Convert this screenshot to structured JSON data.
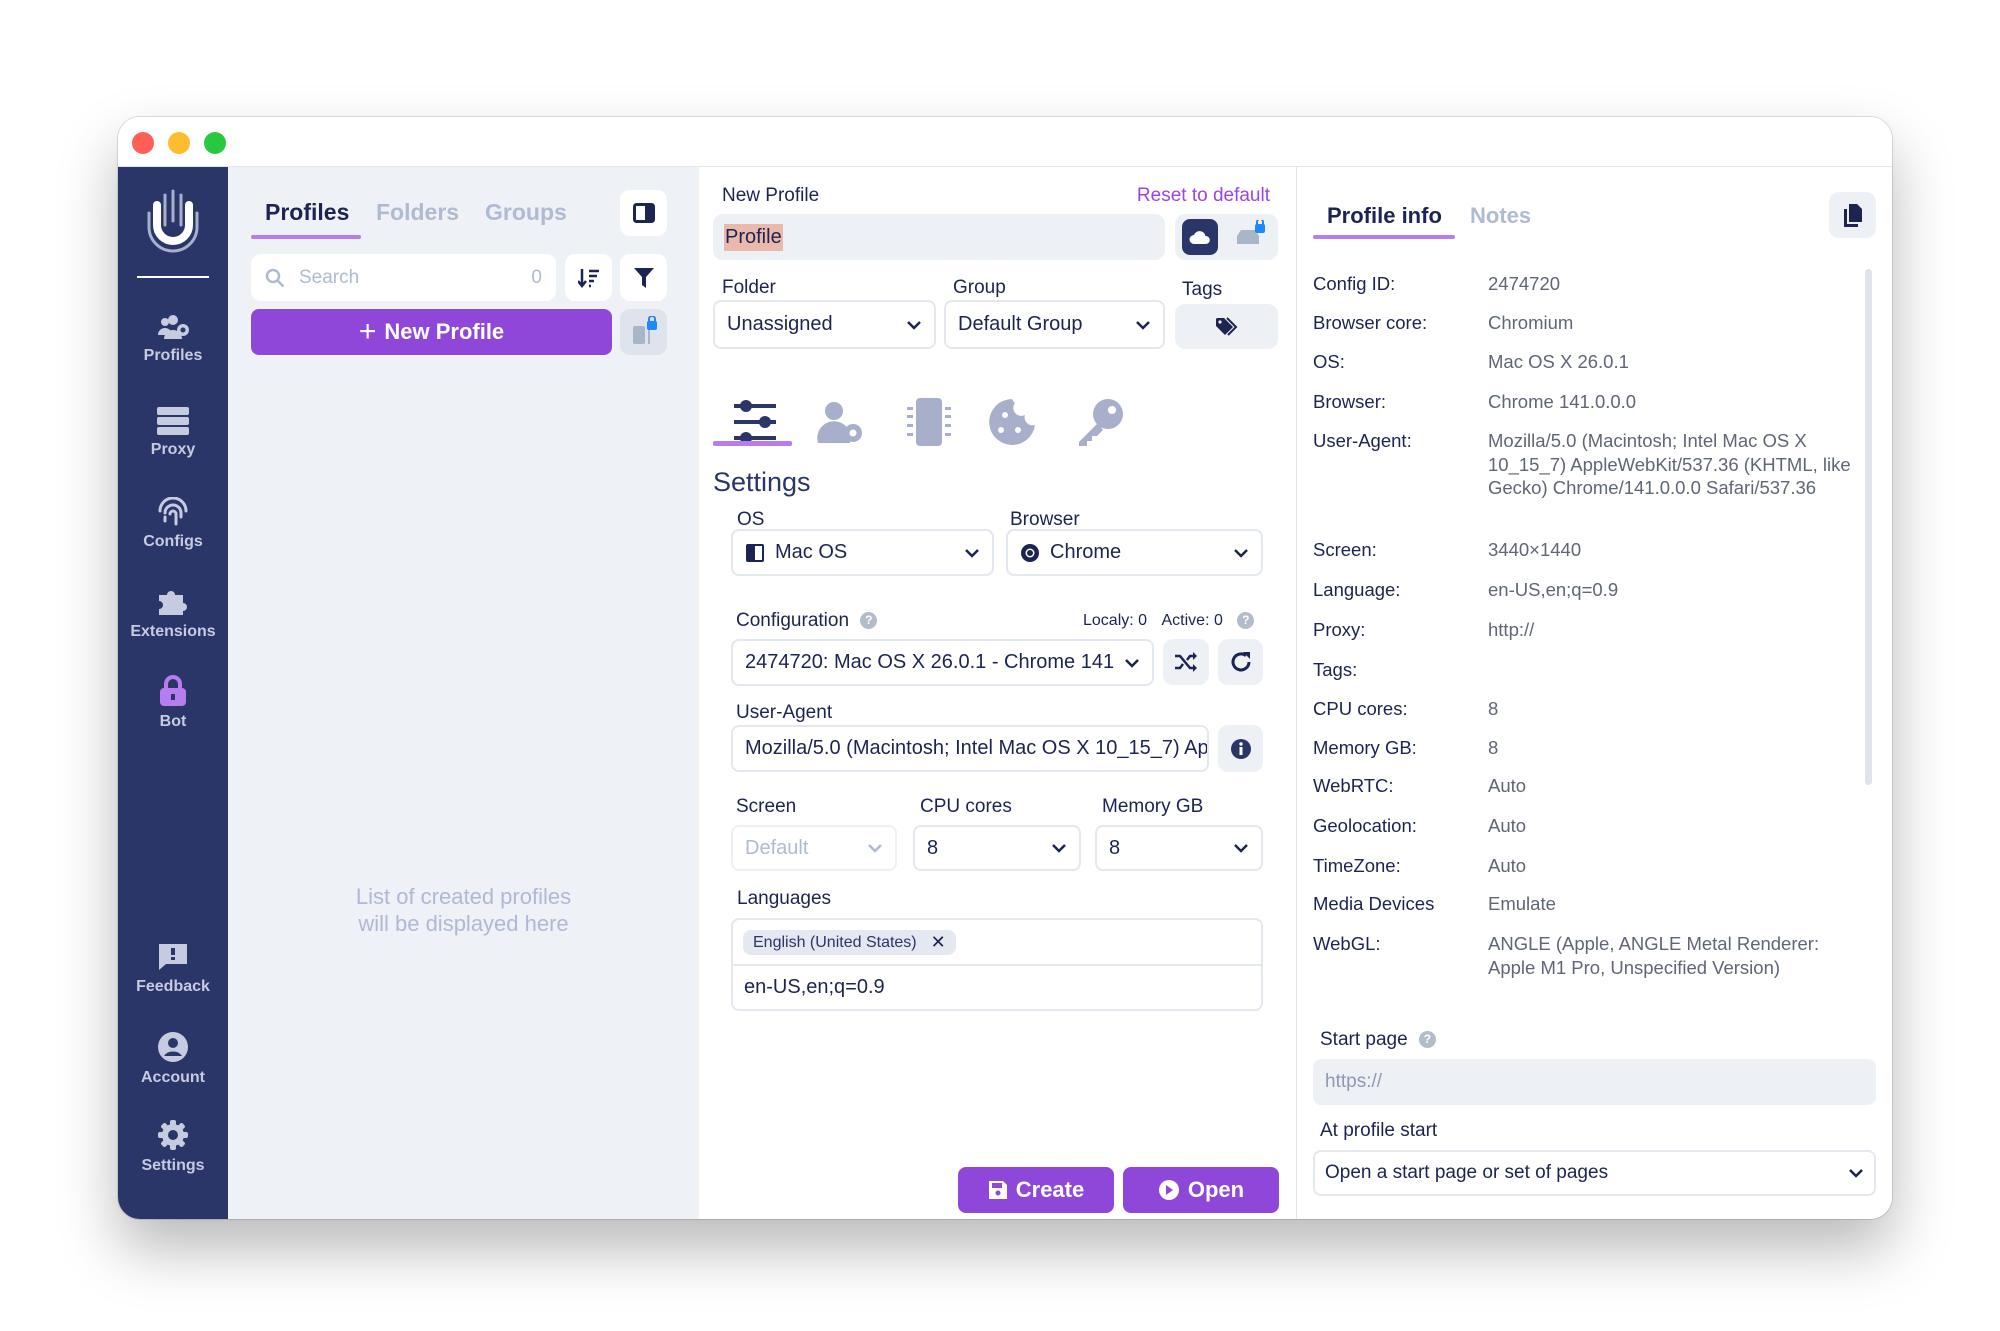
{
  "colors": {
    "sidebar": "#2b3668",
    "accent": "#8e47d8",
    "text": "#1c2451",
    "muted": "#a8b3c4",
    "panel": "#eef1f6"
  },
  "sidebar": {
    "items": [
      {
        "label": "Profiles",
        "icon": "users-gear-icon"
      },
      {
        "label": "Proxy",
        "icon": "server-icon"
      },
      {
        "label": "Configs",
        "icon": "fingerprint-icon"
      },
      {
        "label": "Extensions",
        "icon": "puzzle-icon"
      },
      {
        "label": "Bot",
        "icon": "lock-icon"
      },
      {
        "label": "Feedback",
        "icon": "feedback-icon"
      },
      {
        "label": "Account",
        "icon": "account-icon"
      },
      {
        "label": "Settings",
        "icon": "gear-icon"
      }
    ]
  },
  "list": {
    "tabs": [
      "Profiles",
      "Folders",
      "Groups"
    ],
    "search_placeholder": "Search",
    "search_count": "0",
    "new_profile": "New Profile",
    "empty_line1": "List of created profiles",
    "empty_line2": "will be displayed here"
  },
  "editor": {
    "title": "New Profile",
    "reset": "Reset to default",
    "name_value": "Profile",
    "folder_label": "Folder",
    "folder_value": "Unassigned",
    "group_label": "Group",
    "group_value": "Default Group",
    "tags_label": "Tags",
    "section_title": "Settings",
    "os_label": "OS",
    "os_value": "Mac OS",
    "browser_label": "Browser",
    "browser_value": "Chrome",
    "config_label": "Configuration",
    "locally": "Localy: 0",
    "active": "Active: 0",
    "config_value": "2474720: Mac OS X 26.0.1 - Chrome 141",
    "ua_label": "User-Agent",
    "ua_value": "Mozilla/5.0 (Macintosh; Intel Mac OS X 10_15_7) AppleWebKit/537.36 (KHTML, like Gecko) Chrome/141.0.0.0 Safari/537.36",
    "screen_label": "Screen",
    "screen_value": "Default",
    "cpu_label": "CPU cores",
    "cpu_value": "8",
    "memory_label": "Memory GB",
    "memory_value": "8",
    "languages_label": "Languages",
    "language_chip": "English (United States)",
    "language_value": "en-US,en;q=0.9",
    "create": "Create",
    "open": "Open"
  },
  "info": {
    "tabs": [
      "Profile info",
      "Notes"
    ],
    "rows": [
      {
        "k": "Config ID:",
        "v": "2474720"
      },
      {
        "k": "Browser core:",
        "v": "Chromium"
      },
      {
        "k": "OS:",
        "v": "Mac OS X 26.0.1"
      },
      {
        "k": "Browser:",
        "v": "Chrome 141.0.0.0"
      },
      {
        "k": "User-Agent:",
        "v": "Mozilla/5.0 (Macintosh; Intel Mac OS X 10_15_7) AppleWebKit/537.36 (KHTML, like Gecko) Chrome/141.0.0.0 Safari/537.36"
      },
      {
        "k": "Screen:",
        "v": "3440×1440"
      },
      {
        "k": "Language:",
        "v": "en-US,en;q=0.9"
      },
      {
        "k": "Proxy:",
        "v": "http://"
      },
      {
        "k": "Tags:",
        "v": ""
      },
      {
        "k": "CPU cores:",
        "v": "8"
      },
      {
        "k": "Memory GB:",
        "v": "8"
      },
      {
        "k": "WebRTC:",
        "v": "Auto"
      },
      {
        "k": "Geolocation:",
        "v": "Auto"
      },
      {
        "k": "TimeZone:",
        "v": "Auto"
      },
      {
        "k": "Media Devices",
        "v": "Emulate"
      },
      {
        "k": "WebGL:",
        "v": "ANGLE (Apple, ANGLE Metal Renderer: Apple M1 Pro, Unspecified Version)"
      }
    ],
    "start_page_label": "Start page",
    "start_page_placeholder": "https://",
    "at_start_label": "At profile start",
    "at_start_value": "Open a start page or set of pages"
  }
}
